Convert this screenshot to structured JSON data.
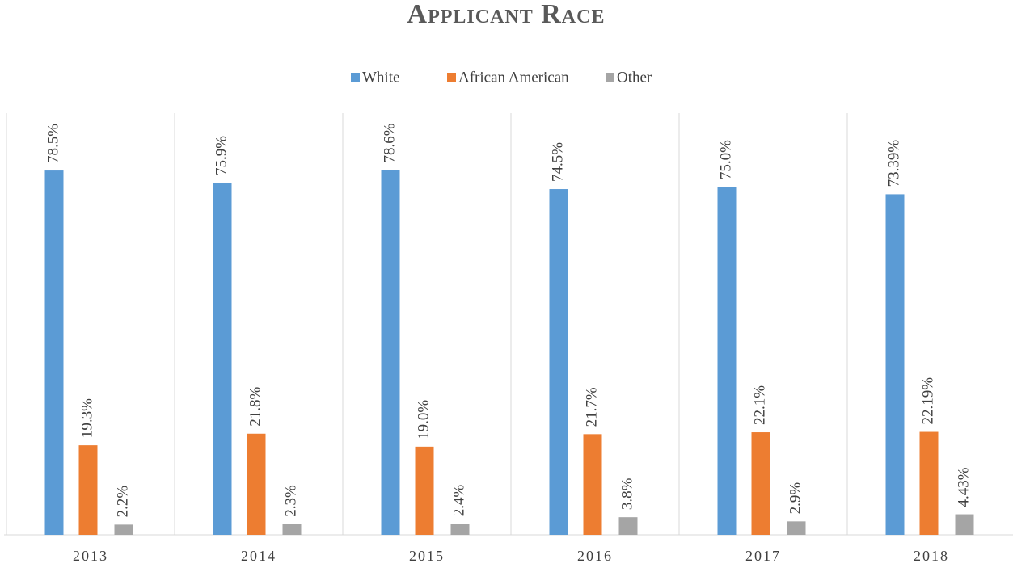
{
  "chart_data": {
    "type": "bar",
    "title": "Applicant Race",
    "categories": [
      "2013",
      "2014",
      "2015",
      "2016",
      "2017",
      "2018"
    ],
    "series": [
      {
        "name": "White",
        "color": "#5b9bd5",
        "values": [
          78.5,
          75.9,
          78.6,
          74.5,
          75.0,
          73.39
        ],
        "value_labels": [
          "78.5%",
          "75.9%",
          "78.6%",
          "74.5%",
          "75.0%",
          "73.39%"
        ]
      },
      {
        "name": "African American",
        "color": "#ed7d31",
        "values": [
          19.3,
          21.8,
          19.0,
          21.7,
          22.1,
          22.19
        ],
        "value_labels": [
          "19.3%",
          "21.8%",
          "19.0%",
          "21.7%",
          "22.1%",
          "22.19%"
        ]
      },
      {
        "name": "Other",
        "color": "#a5a5a5",
        "values": [
          2.2,
          2.3,
          2.4,
          3.8,
          2.9,
          4.43
        ],
        "value_labels": [
          "2.2%",
          "2.3%",
          "2.4%",
          "3.8%",
          "2.9%",
          "4.43%"
        ]
      }
    ],
    "ylim": [
      0,
      90
    ],
    "legend": "top"
  }
}
